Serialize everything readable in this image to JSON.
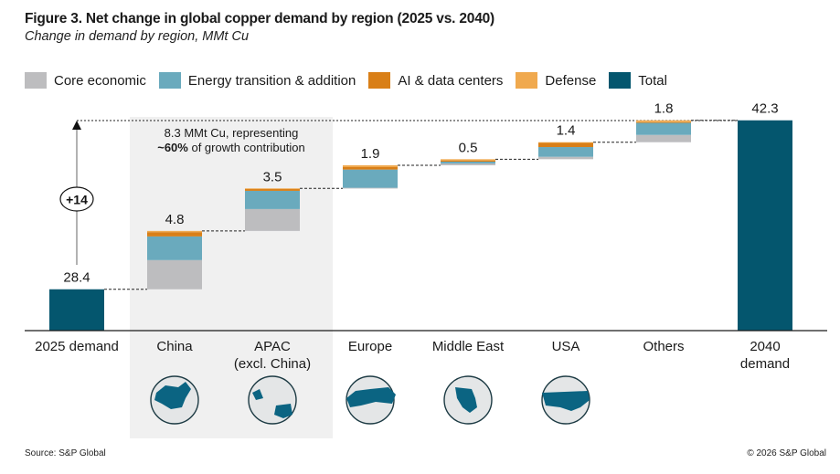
{
  "header": {
    "title": "Figure 3. Net change in global copper demand by region (2025 vs. 2040)",
    "subtitle": "Change in demand by region, MMt Cu"
  },
  "legend": [
    {
      "key": "core",
      "label": "Core economic",
      "color": "#bdbdbf"
    },
    {
      "key": "energy",
      "label": "Energy transition & addition",
      "color": "#6aaabd"
    },
    {
      "key": "ai",
      "label": "AI & data centers",
      "color": "#d97f17"
    },
    {
      "key": "defense",
      "label": "Defense",
      "color": "#f0a94e"
    },
    {
      "key": "total",
      "label": "Total",
      "color": "#04566e"
    }
  ],
  "footer": {
    "source": "Source: S&P Global",
    "copyright": "© 2026 S&P Global"
  },
  "chart_data": {
    "type": "bar",
    "subtype": "waterfall",
    "title": "Figure 3. Net change in global copper demand by region (2025 vs. 2040)",
    "subtitle": "Change in demand by region, MMt Cu",
    "ylabel": "MMt Cu",
    "ylim": [
      25,
      43
    ],
    "grid": false,
    "legend_position": "top",
    "categories": [
      "2025 demand",
      "China",
      "APAC\n(excl. China)",
      "Europe",
      "Middle East",
      "USA",
      "Others",
      "2040\ndemand"
    ],
    "category_lines": [
      [
        "2025 demand"
      ],
      [
        "China"
      ],
      [
        "APAC",
        "(excl. China)"
      ],
      [
        "Europe"
      ],
      [
        "Middle East"
      ],
      [
        "USA"
      ],
      [
        "Others"
      ],
      [
        "2040",
        "demand"
      ]
    ],
    "bars": [
      {
        "category": "2025 demand",
        "kind": "total",
        "value": 28.4,
        "label": "28.4"
      },
      {
        "category": "China",
        "kind": "delta",
        "value": 4.8,
        "label": "4.8",
        "segments": {
          "core": 2.4,
          "energy": 1.95,
          "ai": 0.35,
          "defense": 0.1
        }
      },
      {
        "category": "APAC (excl. China)",
        "kind": "delta",
        "value": 3.5,
        "label": "3.5",
        "segments": {
          "core": 1.8,
          "energy": 1.5,
          "ai": 0.15,
          "defense": 0.05
        }
      },
      {
        "category": "Europe",
        "kind": "delta",
        "value": 1.9,
        "label": "1.9",
        "segments": {
          "core": 0.05,
          "energy": 1.5,
          "ai": 0.2,
          "defense": 0.15
        }
      },
      {
        "category": "Middle East",
        "kind": "delta",
        "value": 0.5,
        "label": "0.5",
        "segments": {
          "core": 0.15,
          "energy": 0.15,
          "ai": 0.1,
          "defense": 0.1
        }
      },
      {
        "category": "USA",
        "kind": "delta",
        "value": 1.4,
        "label": "1.4",
        "segments": {
          "core": 0.2,
          "energy": 0.8,
          "ai": 0.35,
          "defense": 0.05
        }
      },
      {
        "category": "Others",
        "kind": "delta",
        "value": 1.8,
        "label": "1.8",
        "segments": {
          "core": 0.6,
          "energy": 1.0,
          "ai": 0.05,
          "defense": 0.15
        }
      },
      {
        "category": "2040 demand",
        "kind": "total",
        "value": 42.3,
        "label": "42.3"
      }
    ],
    "annotations": {
      "growth_label": "+14",
      "highlight_note_line1": "8.3 MMt Cu, representing",
      "highlight_note_bold": "~60%",
      "highlight_note_line2": " of growth contribution",
      "highlight_categories": [
        "China",
        "APAC (excl. China)"
      ]
    },
    "region_icons": [
      {
        "category": "China",
        "icon": "china-globe-icon"
      },
      {
        "category": "APAC (excl. China)",
        "icon": "apac-globe-icon"
      },
      {
        "category": "Europe",
        "icon": "europe-globe-icon"
      },
      {
        "category": "Middle East",
        "icon": "middle-east-globe-icon"
      },
      {
        "category": "USA",
        "icon": "usa-globe-icon"
      }
    ]
  }
}
